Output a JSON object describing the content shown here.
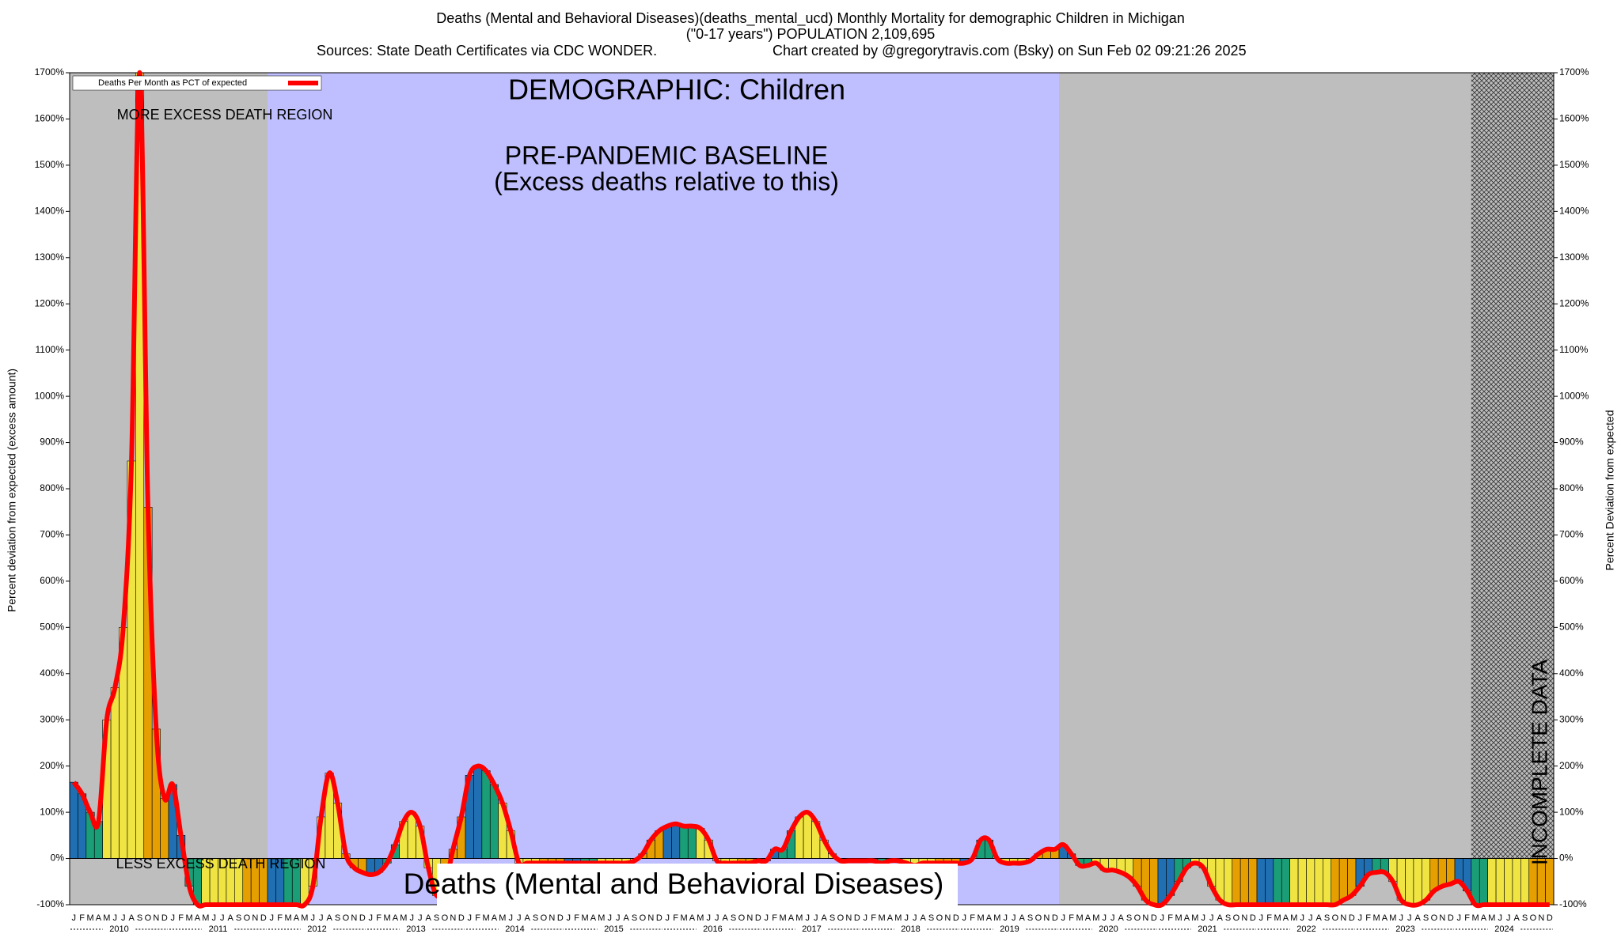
{
  "chart_data": {
    "type": "bar",
    "title": "Deaths (Mental and Behavioral Diseases)(deaths_mental_ucd) Monthly Mortality for demographic Children in Michigan",
    "subtitle": "(\"0-17 years\") POPULATION 2,109,695",
    "source": "Sources: State Death Certificates via CDC WONDER.",
    "credit": "Chart created by @gregorytravis.com (Bsky) on Sun Feb 02 09:21:26 2025",
    "ylabel": "Percent deviation from expected (excess amount)",
    "y2label": "Percent Deviation from expected",
    "annotations": {
      "demographic": "DEMOGRAPHIC: Children",
      "baseline": "PRE-PANDEMIC BASELINE",
      "baseline_note": "(Excess deaths relative to this)",
      "more": "MORE EXCESS DEATH REGION",
      "less": "LESS EXCESS DEATH REGION",
      "cause": "Deaths (Mental and Behavioral Diseases)",
      "incomplete": "INCOMPLETE DATA"
    },
    "categories": [
      "J",
      "F",
      "M",
      "A",
      "M",
      "J",
      "J",
      "A",
      "S",
      "O",
      "N",
      "D",
      "J",
      "F",
      "M",
      "A",
      "M",
      "J",
      "J",
      "A",
      "S",
      "O",
      "N",
      "D",
      "J",
      "F",
      "M",
      "A",
      "M",
      "J",
      "J",
      "A",
      "S",
      "O",
      "N",
      "D",
      "J",
      "F",
      "M",
      "A",
      "M",
      "J",
      "J",
      "A",
      "S",
      "O",
      "N",
      "D",
      "J",
      "F",
      "M",
      "A",
      "M",
      "J",
      "J",
      "A",
      "S",
      "O",
      "N",
      "D",
      "J",
      "F",
      "M",
      "A",
      "M",
      "J",
      "J",
      "A",
      "S",
      "O",
      "N",
      "D",
      "J",
      "F",
      "M",
      "A",
      "M",
      "J",
      "J",
      "A",
      "S",
      "O",
      "N",
      "D",
      "J",
      "F",
      "M",
      "A",
      "M",
      "J",
      "J",
      "A",
      "S",
      "O",
      "N",
      "D",
      "J",
      "F",
      "M",
      "A",
      "M",
      "J",
      "J",
      "A",
      "S",
      "O",
      "N",
      "D",
      "J",
      "F",
      "M",
      "A",
      "M",
      "J",
      "J",
      "A",
      "S",
      "O",
      "N",
      "D",
      "J",
      "F",
      "M",
      "A",
      "M",
      "J",
      "J",
      "A",
      "S",
      "O",
      "N",
      "D",
      "J",
      "F",
      "M",
      "A",
      "M",
      "J",
      "J",
      "A",
      "S",
      "O",
      "N",
      "D",
      "J",
      "F",
      "M",
      "A",
      "M",
      "J",
      "J",
      "A",
      "S",
      "O",
      "N",
      "D",
      "J",
      "F",
      "M",
      "A",
      "M",
      "J",
      "J",
      "A",
      "S",
      "O",
      "N",
      "D",
      "J",
      "F",
      "M",
      "A",
      "M",
      "J",
      "J",
      "A",
      "S",
      "O",
      "N",
      "D"
    ],
    "years": [
      "2010",
      "2011",
      "2012",
      "2013",
      "2014",
      "2015",
      "2016",
      "2017",
      "2018",
      "2019",
      "2020",
      "2021",
      "2022",
      "2023",
      "2024"
    ],
    "series": [
      {
        "name": "Deaths Per Month as PCT of expected",
        "color": "#ff0000",
        "values": [
          165,
          140,
          100,
          80,
          300,
          370,
          500,
          860,
          1700,
          760,
          280,
          130,
          160,
          50,
          -60,
          -100,
          -100,
          -100,
          -100,
          -100,
          -100,
          -100,
          -100,
          -100,
          -100,
          -100,
          -100,
          -100,
          -100,
          -60,
          90,
          185,
          120,
          10,
          -20,
          -30,
          -35,
          -30,
          -10,
          30,
          80,
          100,
          70,
          -20,
          -80,
          -60,
          20,
          90,
          180,
          200,
          190,
          160,
          120,
          60,
          -10,
          -10,
          -10,
          -10,
          -10,
          -10,
          -10,
          -10,
          -10,
          -10,
          -10,
          -10,
          -10,
          -10,
          -5,
          10,
          40,
          60,
          70,
          75,
          70,
          70,
          65,
          40,
          -5,
          -10,
          -10,
          -10,
          -10,
          -5,
          -5,
          20,
          20,
          60,
          90,
          100,
          80,
          40,
          10,
          -5,
          -5,
          -5,
          -5,
          -5,
          -10,
          -5,
          -5,
          -10,
          -15,
          -10,
          -10,
          -10,
          -10,
          -10,
          -10,
          0,
          40,
          40,
          0,
          -10,
          -10,
          -10,
          -5,
          10,
          20,
          20,
          30,
          10,
          -15,
          -15,
          -10,
          -25,
          -25,
          -30,
          -40,
          -60,
          -90,
          -100,
          -100,
          -80,
          -50,
          -20,
          -10,
          -20,
          -60,
          -90,
          -100,
          -100,
          -100,
          -100,
          -100,
          -100,
          -100,
          -100,
          -100,
          -100,
          -100,
          -100,
          -100,
          -100,
          -90,
          -80,
          -60,
          -35,
          -30,
          -30,
          -50,
          -90,
          -100,
          -100,
          -90,
          -70,
          -60,
          -55,
          -50,
          -70,
          -100,
          -100,
          -100,
          -100,
          -100,
          -100,
          -100,
          -100,
          -100,
          -100
        ]
      }
    ],
    "month_colors": [
      "#1f6fb2",
      "#1f6fb2",
      "#1a9e77",
      "#1a9e77",
      "#f0e442",
      "#f0e442",
      "#f0e442",
      "#f0e442",
      "#f0e442",
      "#e69f00",
      "#e69f00",
      "#e69f00"
    ],
    "ylim": [
      -100,
      1700
    ],
    "yticks": [
      {
        "value": -100,
        "label": "-100%"
      },
      {
        "value": 0,
        "label": "0%"
      },
      {
        "value": 100,
        "label": "100%"
      },
      {
        "value": 200,
        "label": "200%"
      },
      {
        "value": 300,
        "label": "300%"
      },
      {
        "value": 400,
        "label": "400%"
      },
      {
        "value": 500,
        "label": "500%"
      },
      {
        "value": 600,
        "label": "600%"
      },
      {
        "value": 700,
        "label": "700%"
      },
      {
        "value": 800,
        "label": "800%"
      },
      {
        "value": 900,
        "label": "900%"
      },
      {
        "value": 1000,
        "label": "1000%"
      },
      {
        "value": 1100,
        "label": "1100%"
      },
      {
        "value": 1200,
        "label": "1200%"
      },
      {
        "value": 1300,
        "label": "1300%"
      },
      {
        "value": 1400,
        "label": "1400%"
      },
      {
        "value": 1500,
        "label": "1500%"
      },
      {
        "value": 1600,
        "label": "1600%"
      },
      {
        "value": 1700,
        "label": "1700%"
      }
    ],
    "legend": "top-left"
  }
}
